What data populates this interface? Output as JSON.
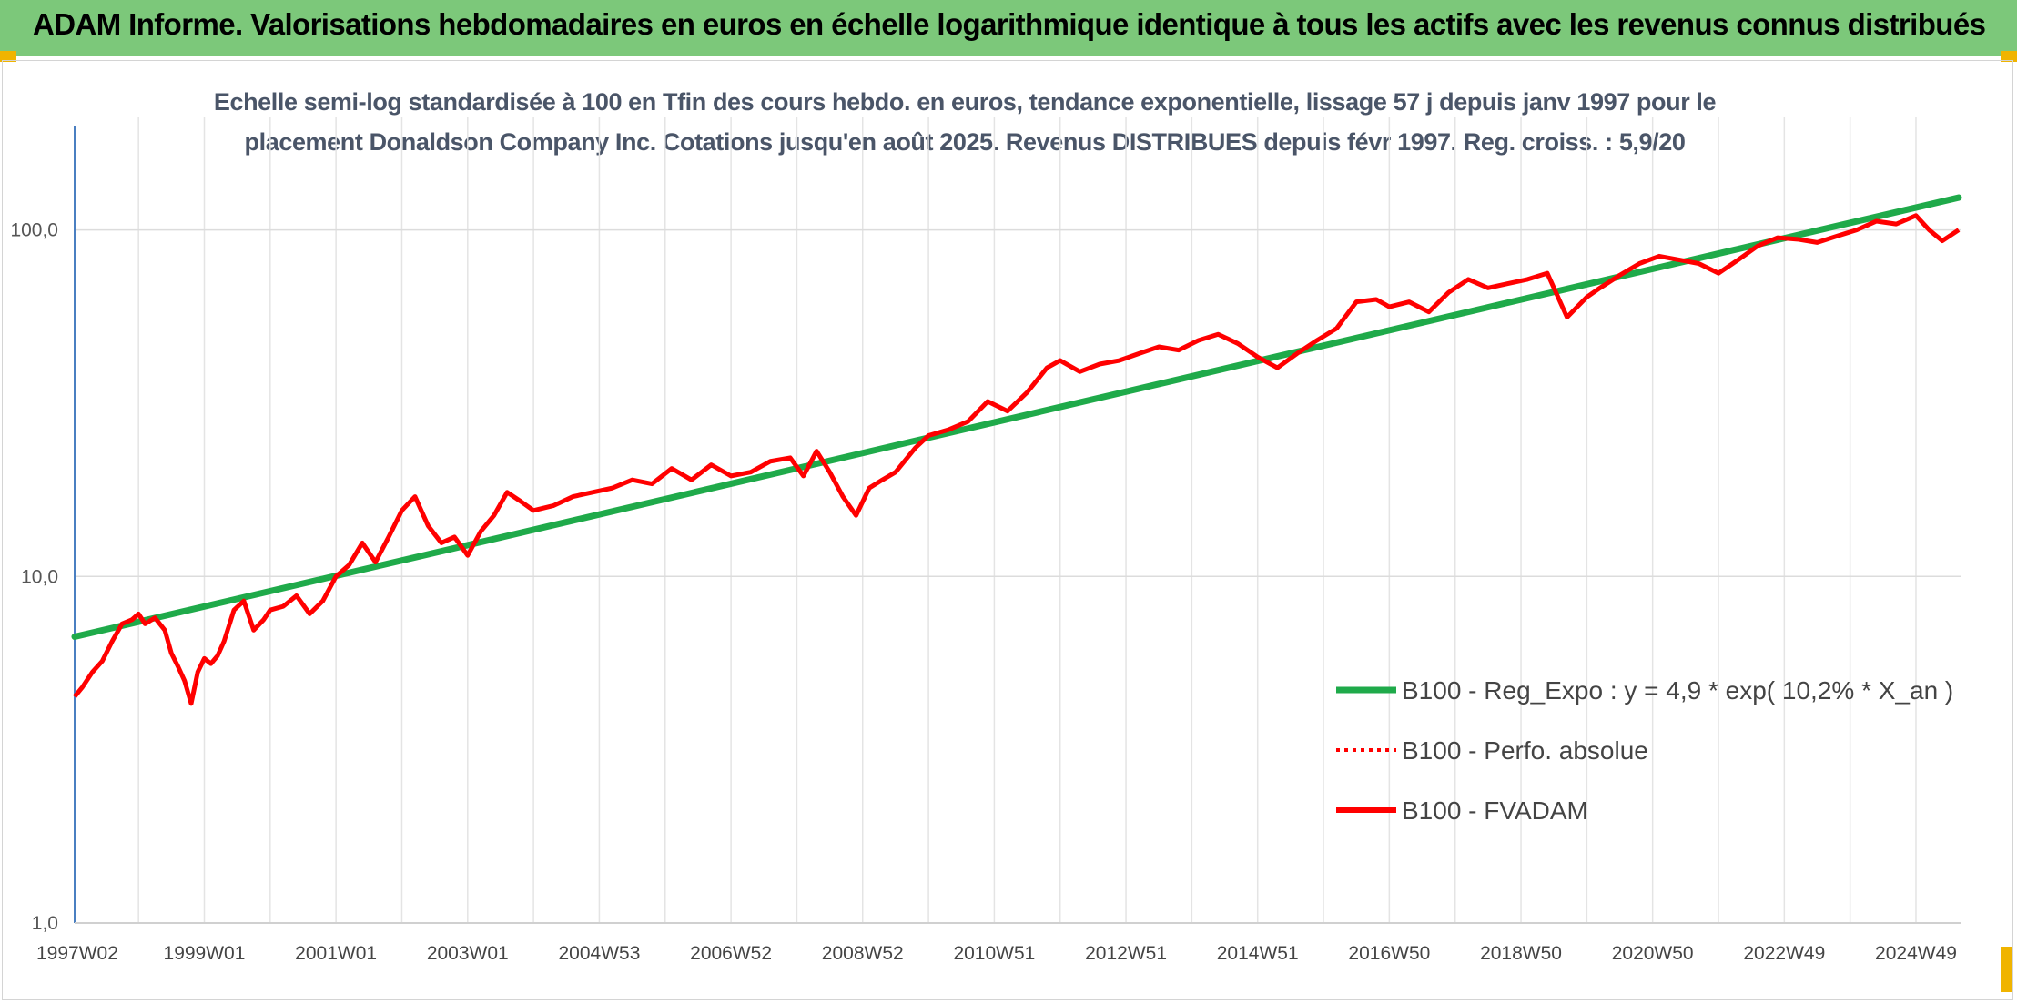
{
  "header": {
    "title": "ADAM Informe. Valorisations hebdomadaires en euros en échelle logarithmique identique à tous les actifs avec les revenus connus distribués"
  },
  "colors": {
    "banner": "#7cc87a",
    "corner_accent": "#f0b400",
    "regression": "#1faa4a",
    "fvadam": "#ff0000",
    "perfo": "#ff0000"
  },
  "chart_data": {
    "type": "line",
    "title": "Echelle semi-log standardisée à 100 en Tfin des cours hebdo. en euros, tendance exponentielle, lissage 57 j depuis janv 1997 pour le placement Donaldson Company Inc. Cotations jusqu'en août 2025. Revenus DISTRIBUES depuis févr 1997. Reg. croiss. : 5,9/20",
    "y_scale": "log",
    "ylim": [
      1,
      200
    ],
    "xlim": [
      1997.03,
      2025.65
    ],
    "grid": true,
    "y_ticks": [
      {
        "value": 1,
        "label": "1,0"
      },
      {
        "value": 10,
        "label": "10,0"
      },
      {
        "value": 100,
        "label": "100,0"
      }
    ],
    "x_ticks": [
      {
        "value": 1997.03,
        "label": "1997W02"
      },
      {
        "value": 1999.0,
        "label": "1999W01"
      },
      {
        "value": 2001.0,
        "label": "2001W01"
      },
      {
        "value": 2003.0,
        "label": "2003W01"
      },
      {
        "value": 2005.0,
        "label": "2004W53"
      },
      {
        "value": 2007.0,
        "label": "2006W52"
      },
      {
        "value": 2009.0,
        "label": "2008W52"
      },
      {
        "value": 2011.0,
        "label": "2010W51"
      },
      {
        "value": 2013.0,
        "label": "2012W51"
      },
      {
        "value": 2015.0,
        "label": "2014W51"
      },
      {
        "value": 2017.0,
        "label": "2016W50"
      },
      {
        "value": 2019.0,
        "label": "2018W50"
      },
      {
        "value": 2021.0,
        "label": "2020W50"
      },
      {
        "value": 2023.0,
        "label": "2022W49"
      },
      {
        "value": 2025.0,
        "label": "2024W49"
      }
    ],
    "legend_position": "right",
    "series": [
      {
        "name": "B100 - Reg_Expo : y = 4,9 * exp( 10,2% *  X_an )",
        "style": "solid-thick",
        "x": [
          1997.03,
          2025.65
        ],
        "values": [
          6.7,
          124
        ]
      },
      {
        "name": "B100 - Perfo. absolue",
        "style": "dotted",
        "x": [],
        "values": []
      },
      {
        "name": "B100 - FVADAM",
        "style": "solid",
        "x": [
          1997.03,
          1997.15,
          1997.3,
          1997.45,
          1997.6,
          1997.75,
          1997.9,
          1998.0,
          1998.1,
          1998.25,
          1998.4,
          1998.5,
          1998.6,
          1998.7,
          1998.8,
          1998.9,
          1999.0,
          1999.1,
          1999.2,
          1999.3,
          1999.45,
          1999.6,
          1999.75,
          1999.9,
          2000.0,
          2000.2,
          2000.4,
          2000.6,
          2000.8,
          2001.0,
          2001.2,
          2001.4,
          2001.6,
          2001.8,
          2002.0,
          2002.2,
          2002.4,
          2002.6,
          2002.8,
          2003.0,
          2003.2,
          2003.4,
          2003.6,
          2003.8,
          2004.0,
          2004.3,
          2004.6,
          2004.9,
          2005.2,
          2005.5,
          2005.8,
          2006.1,
          2006.4,
          2006.7,
          2007.0,
          2007.3,
          2007.6,
          2007.9,
          2008.1,
          2008.3,
          2008.5,
          2008.7,
          2008.9,
          2009.1,
          2009.3,
          2009.5,
          2009.8,
          2010.0,
          2010.3,
          2010.6,
          2010.9,
          2011.2,
          2011.5,
          2011.8,
          2012.0,
          2012.3,
          2012.6,
          2012.9,
          2013.2,
          2013.5,
          2013.8,
          2014.1,
          2014.4,
          2014.7,
          2015.0,
          2015.3,
          2015.6,
          2015.9,
          2016.2,
          2016.5,
          2016.8,
          2017.0,
          2017.3,
          2017.6,
          2017.9,
          2018.2,
          2018.5,
          2018.8,
          2019.1,
          2019.4,
          2019.7,
          2020.0,
          2020.2,
          2020.5,
          2020.8,
          2021.1,
          2021.4,
          2021.7,
          2022.0,
          2022.3,
          2022.6,
          2022.9,
          2023.2,
          2023.5,
          2023.8,
          2024.1,
          2024.4,
          2024.7,
          2025.0,
          2025.2,
          2025.4,
          2025.65
        ],
        "values": [
          4.5,
          4.8,
          5.3,
          5.7,
          6.5,
          7.3,
          7.5,
          7.8,
          7.3,
          7.6,
          7.0,
          6.0,
          5.5,
          5.0,
          4.3,
          5.3,
          5.8,
          5.6,
          5.9,
          6.5,
          8.0,
          8.5,
          7.0,
          7.5,
          8.0,
          8.2,
          8.8,
          7.8,
          8.5,
          10.0,
          10.8,
          12.5,
          11.0,
          13.0,
          15.5,
          17.0,
          14.0,
          12.5,
          13.0,
          11.5,
          13.5,
          15.0,
          17.5,
          16.5,
          15.5,
          16.0,
          17.0,
          17.5,
          18.0,
          19.0,
          18.5,
          20.5,
          19.0,
          21.0,
          19.5,
          20.0,
          21.5,
          22.0,
          19.5,
          23.0,
          20.0,
          17.0,
          15.0,
          18.0,
          19.0,
          20.0,
          23.5,
          25.5,
          26.5,
          28.0,
          32.0,
          30.0,
          34.0,
          40.0,
          42.0,
          39.0,
          41.0,
          42.0,
          44.0,
          46.0,
          45.0,
          48.0,
          50.0,
          47.0,
          43.0,
          40.0,
          44.0,
          48.0,
          52.0,
          62.0,
          63.0,
          60.0,
          62.0,
          58.0,
          66.0,
          72.0,
          68.0,
          70.0,
          72.0,
          75.0,
          56.0,
          64.0,
          68.0,
          74.0,
          80.0,
          84.0,
          82.0,
          80.0,
          75.0,
          82.0,
          90.0,
          95.0,
          94.0,
          92.0,
          96.0,
          100.0,
          106.0,
          104.0,
          110.0,
          100.0,
          93.0,
          100.0
        ]
      }
    ]
  }
}
